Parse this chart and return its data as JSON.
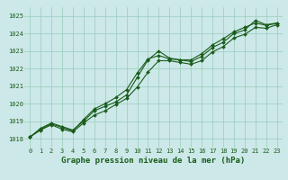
{
  "xlabel": "Graphe pression niveau de la mer (hPa)",
  "bg_color": "#cce8e8",
  "grid_color": "#99ccbb",
  "line_color": "#1a5c1a",
  "x_values": [
    0,
    1,
    2,
    3,
    4,
    5,
    6,
    7,
    8,
    9,
    10,
    11,
    12,
    13,
    14,
    15,
    16,
    17,
    18,
    19,
    20,
    21,
    22,
    23
  ],
  "line1": [
    1018.1,
    1018.6,
    1018.9,
    1018.7,
    1018.5,
    1019.0,
    1019.6,
    1019.85,
    1020.1,
    1020.5,
    1021.5,
    1022.5,
    1023.0,
    1022.6,
    1022.5,
    1022.4,
    1022.7,
    1023.2,
    1023.5,
    1024.0,
    1024.2,
    1024.75,
    1024.5,
    1024.6
  ],
  "line2": [
    1018.1,
    1018.55,
    1018.85,
    1018.65,
    1018.45,
    1019.1,
    1019.7,
    1020.0,
    1020.35,
    1020.8,
    1021.75,
    1022.55,
    1022.75,
    1022.55,
    1022.5,
    1022.5,
    1022.85,
    1023.35,
    1023.7,
    1024.1,
    1024.35,
    1024.6,
    1024.47,
    1024.57
  ],
  "line3": [
    1018.1,
    1018.5,
    1018.8,
    1018.55,
    1018.4,
    1018.9,
    1019.35,
    1019.6,
    1019.95,
    1020.3,
    1020.95,
    1021.8,
    1022.45,
    1022.45,
    1022.35,
    1022.25,
    1022.45,
    1022.95,
    1023.25,
    1023.75,
    1023.95,
    1024.35,
    1024.3,
    1024.5
  ],
  "ylim": [
    1017.5,
    1025.5
  ],
  "yticks": [
    1018,
    1019,
    1020,
    1021,
    1022,
    1023,
    1024,
    1025
  ],
  "xticks": [
    0,
    1,
    2,
    3,
    4,
    5,
    6,
    7,
    8,
    9,
    10,
    11,
    12,
    13,
    14,
    15,
    16,
    17,
    18,
    19,
    20,
    21,
    22,
    23
  ],
  "marker": "D",
  "markersize": 2.0,
  "linewidth": 0.8,
  "xlabel_fontsize": 6.5,
  "tick_fontsize": 5.0
}
